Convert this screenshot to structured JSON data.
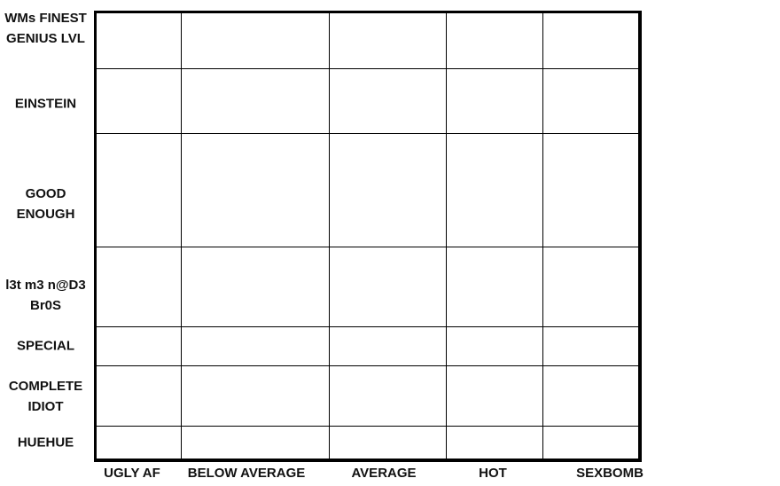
{
  "chart_data": {
    "type": "table",
    "title": "",
    "xlabel": "",
    "ylabel": "",
    "x_categories": [
      "UGLY AF",
      "BELOW AVERAGE",
      "AVERAGE",
      "HOT",
      "SEXBOMB"
    ],
    "y_categories": [
      "WMs FINEST\nGENIUS LVL",
      "EINSTEIN",
      "GOOD\nENOUGH",
      "l3t m3 n@D3\nBr0S",
      "SPECIAL",
      "COMPLETE\nIDIOT",
      "HUEHUE"
    ],
    "cells": [],
    "grid": true
  }
}
